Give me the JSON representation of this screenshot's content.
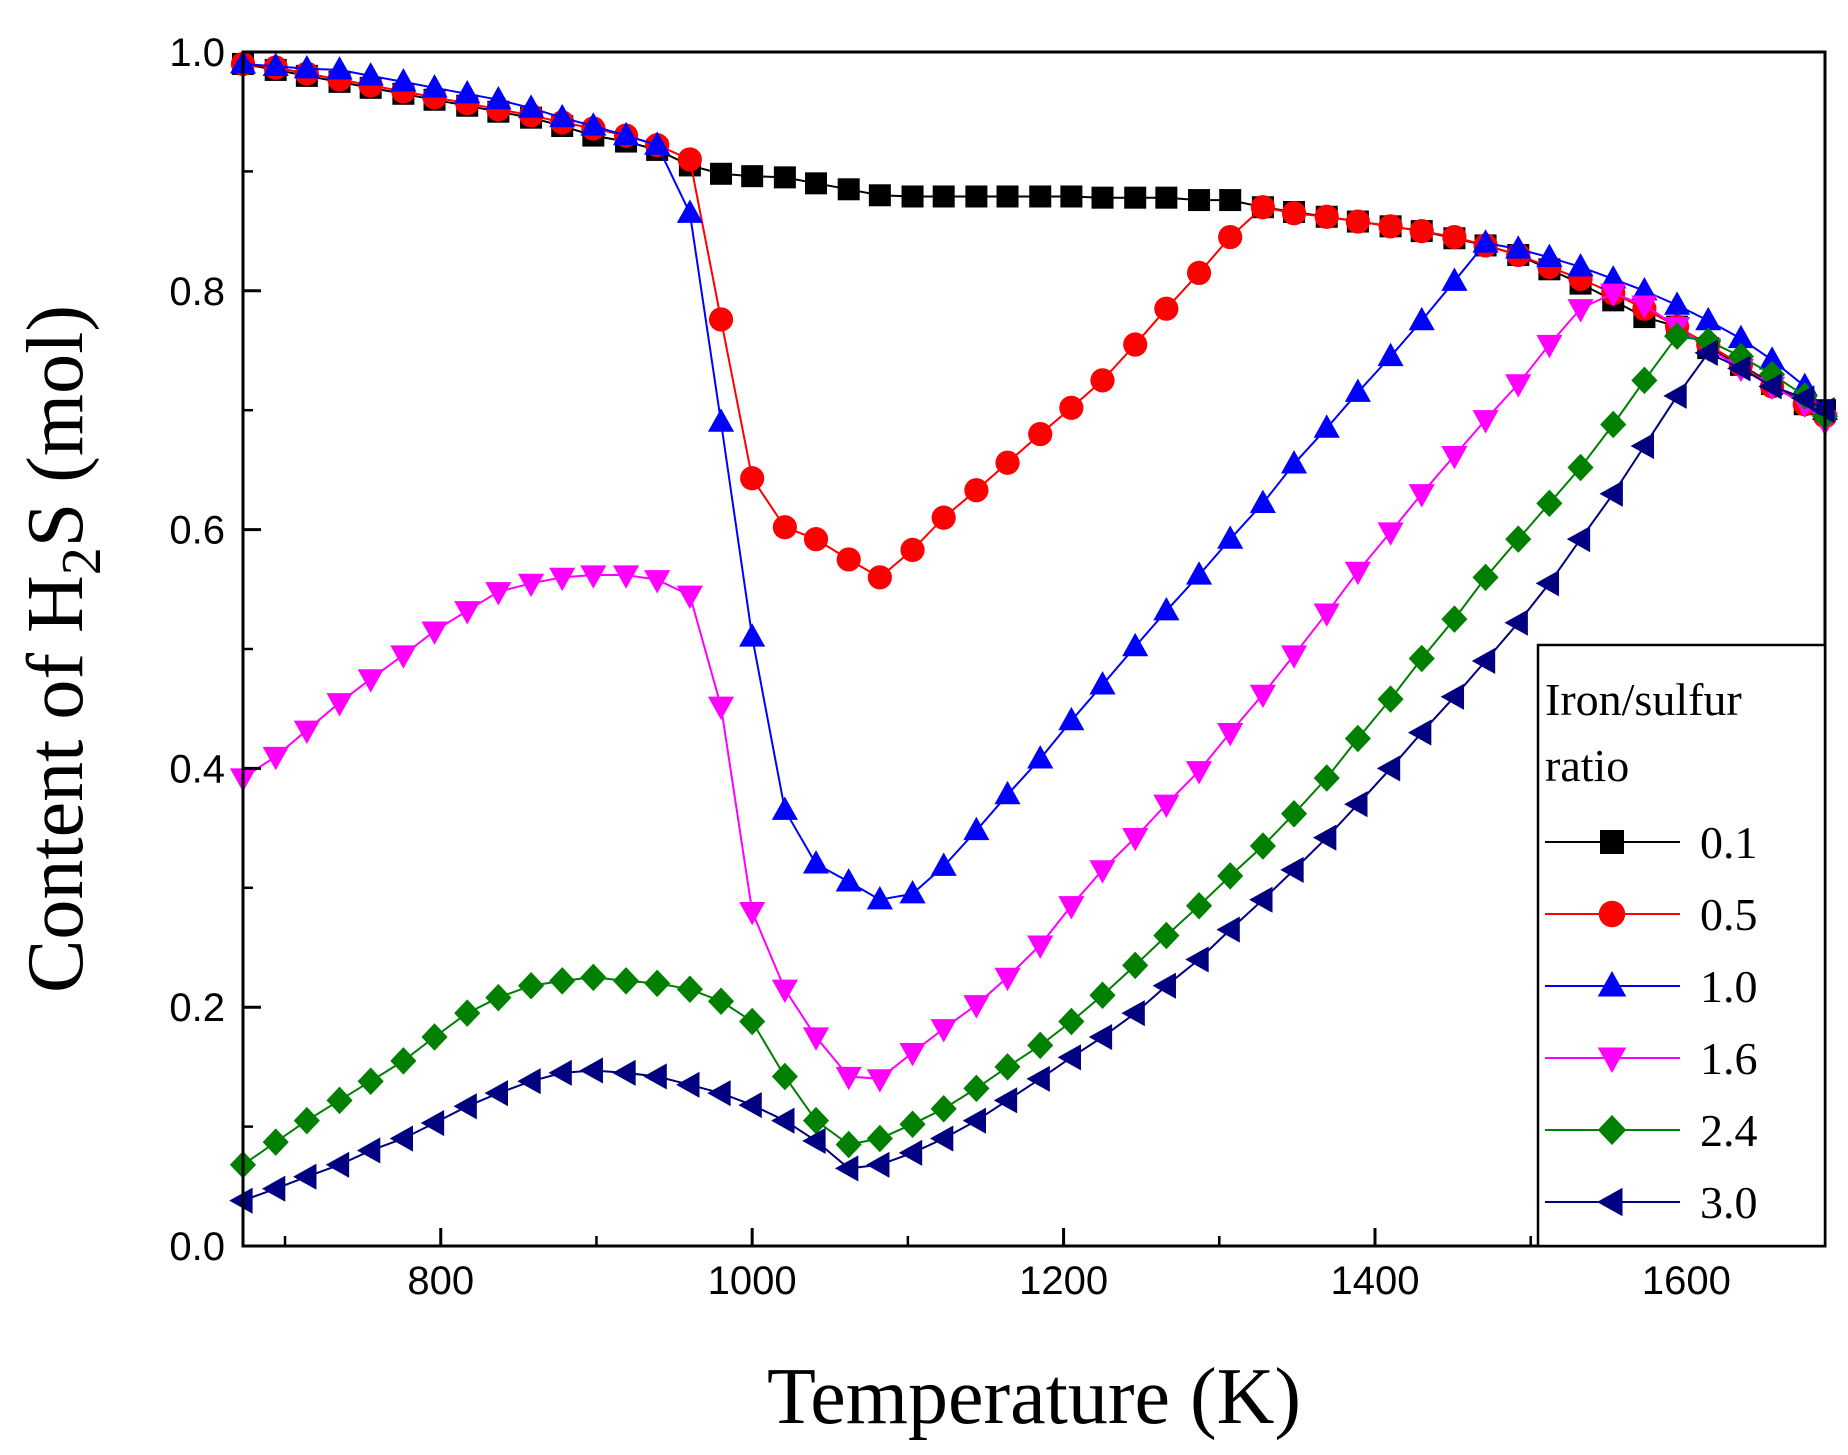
{
  "chart_data": {
    "type": "line",
    "title": "",
    "xlabel": "Temperature (K)",
    "ylabel_prefix": "Content of H",
    "ylabel_subscript": "2",
    "ylabel_suffix": "S (mol)",
    "xlim": [
      673,
      1689
    ],
    "ylim": [
      0,
      1.0
    ],
    "xticks": [
      800,
      1000,
      1200,
      1400,
      1600
    ],
    "yticks": [
      "0.0",
      "0.2",
      "0.4",
      "0.6",
      "0.8",
      "1.0"
    ],
    "grid": false,
    "legend": {
      "title_line1": "Iron/sulfur",
      "title_line2": "ratio",
      "position": "bottom-right"
    },
    "series": [
      {
        "name": "0.1",
        "color": "#000000",
        "marker": "square",
        "x": [
          673,
          694,
          714,
          735,
          755,
          776,
          796,
          817,
          837,
          858,
          878,
          898,
          919,
          939,
          960,
          980,
          1000,
          1021,
          1041,
          1062,
          1082,
          1103,
          1123,
          1144,
          1164,
          1185,
          1205,
          1225,
          1246,
          1266,
          1287,
          1307,
          1328,
          1348,
          1369,
          1389,
          1410,
          1430,
          1451,
          1471,
          1492,
          1512,
          1532,
          1553,
          1573,
          1594,
          1614,
          1635,
          1655,
          1676,
          1689
        ],
        "y": [
          0.99,
          0.985,
          0.98,
          0.975,
          0.97,
          0.965,
          0.96,
          0.955,
          0.95,
          0.945,
          0.938,
          0.93,
          0.925,
          0.918,
          0.905,
          0.898,
          0.896,
          0.895,
          0.89,
          0.885,
          0.88,
          0.879,
          0.879,
          0.879,
          0.879,
          0.879,
          0.879,
          0.878,
          0.878,
          0.878,
          0.876,
          0.876,
          0.87,
          0.866,
          0.862,
          0.858,
          0.854,
          0.85,
          0.844,
          0.838,
          0.83,
          0.818,
          0.806,
          0.792,
          0.778,
          0.77,
          0.752,
          0.738,
          0.722,
          0.705,
          0.7
        ]
      },
      {
        "name": "0.5",
        "color": "#ff0000",
        "marker": "circle",
        "x": [
          673,
          694,
          714,
          735,
          755,
          776,
          796,
          817,
          837,
          858,
          878,
          898,
          919,
          939,
          960,
          980,
          1000,
          1021,
          1041,
          1062,
          1082,
          1103,
          1123,
          1144,
          1164,
          1185,
          1205,
          1225,
          1246,
          1266,
          1287,
          1307,
          1328,
          1348,
          1369,
          1389,
          1410,
          1430,
          1451,
          1471,
          1492,
          1512,
          1532,
          1553,
          1573,
          1594,
          1614,
          1635,
          1655,
          1676,
          1689
        ],
        "y": [
          0.99,
          0.987,
          0.982,
          0.977,
          0.972,
          0.967,
          0.962,
          0.957,
          0.952,
          0.947,
          0.941,
          0.936,
          0.93,
          0.922,
          0.91,
          0.776,
          0.643,
          0.602,
          0.592,
          0.575,
          0.56,
          0.583,
          0.61,
          0.633,
          0.656,
          0.68,
          0.702,
          0.725,
          0.755,
          0.785,
          0.815,
          0.845,
          0.87,
          0.865,
          0.862,
          0.858,
          0.854,
          0.85,
          0.845,
          0.838,
          0.83,
          0.82,
          0.81,
          0.798,
          0.785,
          0.77,
          0.755,
          0.738,
          0.72,
          0.705,
          0.695
        ]
      },
      {
        "name": "1.0",
        "color": "#0000ff",
        "marker": "triangle-up",
        "x": [
          673,
          694,
          714,
          735,
          755,
          776,
          796,
          817,
          837,
          858,
          878,
          898,
          919,
          939,
          960,
          980,
          1000,
          1021,
          1041,
          1062,
          1082,
          1103,
          1123,
          1144,
          1164,
          1185,
          1205,
          1225,
          1246,
          1266,
          1287,
          1307,
          1328,
          1348,
          1369,
          1389,
          1410,
          1430,
          1451,
          1471,
          1492,
          1512,
          1532,
          1553,
          1573,
          1594,
          1614,
          1635,
          1655,
          1676,
          1689
        ],
        "y": [
          0.99,
          0.988,
          0.986,
          0.985,
          0.98,
          0.975,
          0.97,
          0.965,
          0.96,
          0.953,
          0.945,
          0.938,
          0.93,
          0.922,
          0.865,
          0.69,
          0.51,
          0.365,
          0.32,
          0.305,
          0.29,
          0.295,
          0.318,
          0.348,
          0.378,
          0.408,
          0.44,
          0.47,
          0.502,
          0.532,
          0.562,
          0.592,
          0.622,
          0.655,
          0.685,
          0.715,
          0.745,
          0.775,
          0.808,
          0.84,
          0.835,
          0.828,
          0.82,
          0.81,
          0.8,
          0.788,
          0.775,
          0.76,
          0.742,
          0.72,
          0.7
        ]
      },
      {
        "name": "1.6",
        "color": "#ff00ff",
        "marker": "triangle-down",
        "x": [
          673,
          694,
          714,
          735,
          755,
          776,
          796,
          817,
          837,
          858,
          878,
          898,
          919,
          939,
          960,
          980,
          1000,
          1021,
          1041,
          1062,
          1082,
          1103,
          1123,
          1144,
          1164,
          1185,
          1205,
          1225,
          1246,
          1266,
          1287,
          1307,
          1328,
          1348,
          1369,
          1389,
          1410,
          1430,
          1451,
          1471,
          1492,
          1512,
          1532,
          1553,
          1573,
          1594,
          1614,
          1635,
          1655,
          1676,
          1689
        ],
        "y": [
          0.392,
          0.41,
          0.432,
          0.455,
          0.475,
          0.495,
          0.515,
          0.532,
          0.548,
          0.555,
          0.56,
          0.562,
          0.562,
          0.558,
          0.545,
          0.452,
          0.28,
          0.215,
          0.175,
          0.142,
          0.14,
          0.162,
          0.182,
          0.202,
          0.225,
          0.252,
          0.285,
          0.315,
          0.342,
          0.37,
          0.398,
          0.43,
          0.462,
          0.495,
          0.53,
          0.565,
          0.598,
          0.63,
          0.662,
          0.692,
          0.722,
          0.755,
          0.785,
          0.798,
          0.788,
          0.77,
          0.752,
          0.735,
          0.72,
          0.705,
          0.69
        ]
      },
      {
        "name": "2.4",
        "color": "#008000",
        "marker": "diamond",
        "x": [
          673,
          694,
          714,
          735,
          755,
          776,
          796,
          817,
          837,
          858,
          878,
          898,
          919,
          939,
          960,
          980,
          1000,
          1021,
          1041,
          1062,
          1082,
          1103,
          1123,
          1144,
          1164,
          1185,
          1205,
          1225,
          1246,
          1266,
          1287,
          1307,
          1328,
          1348,
          1369,
          1389,
          1410,
          1430,
          1451,
          1471,
          1492,
          1512,
          1532,
          1553,
          1573,
          1594,
          1614,
          1635,
          1655,
          1676,
          1689
        ],
        "y": [
          0.068,
          0.087,
          0.105,
          0.122,
          0.138,
          0.155,
          0.175,
          0.195,
          0.208,
          0.218,
          0.222,
          0.225,
          0.222,
          0.22,
          0.215,
          0.205,
          0.188,
          0.142,
          0.105,
          0.085,
          0.09,
          0.102,
          0.115,
          0.132,
          0.15,
          0.168,
          0.188,
          0.21,
          0.235,
          0.26,
          0.285,
          0.31,
          0.335,
          0.362,
          0.392,
          0.425,
          0.458,
          0.492,
          0.525,
          0.56,
          0.592,
          0.622,
          0.652,
          0.688,
          0.725,
          0.762,
          0.758,
          0.745,
          0.73,
          0.712,
          0.695
        ]
      },
      {
        "name": "3.0",
        "color": "#000080",
        "marker": "triangle-left",
        "x": [
          673,
          694,
          714,
          735,
          755,
          776,
          796,
          817,
          837,
          858,
          878,
          898,
          919,
          939,
          960,
          980,
          1000,
          1021,
          1041,
          1062,
          1082,
          1103,
          1123,
          1144,
          1164,
          1185,
          1205,
          1225,
          1246,
          1266,
          1287,
          1307,
          1328,
          1348,
          1369,
          1389,
          1410,
          1430,
          1451,
          1471,
          1492,
          1512,
          1532,
          1553,
          1573,
          1594,
          1614,
          1635,
          1655,
          1676,
          1689
        ],
        "y": [
          0.038,
          0.048,
          0.058,
          0.068,
          0.08,
          0.09,
          0.103,
          0.117,
          0.128,
          0.138,
          0.145,
          0.147,
          0.145,
          0.142,
          0.135,
          0.128,
          0.118,
          0.105,
          0.088,
          0.065,
          0.068,
          0.078,
          0.09,
          0.105,
          0.122,
          0.14,
          0.158,
          0.175,
          0.195,
          0.218,
          0.24,
          0.265,
          0.29,
          0.315,
          0.342,
          0.37,
          0.4,
          0.43,
          0.46,
          0.49,
          0.522,
          0.555,
          0.592,
          0.63,
          0.67,
          0.712,
          0.748,
          0.735,
          0.72,
          0.71,
          0.7
        ]
      }
    ]
  }
}
